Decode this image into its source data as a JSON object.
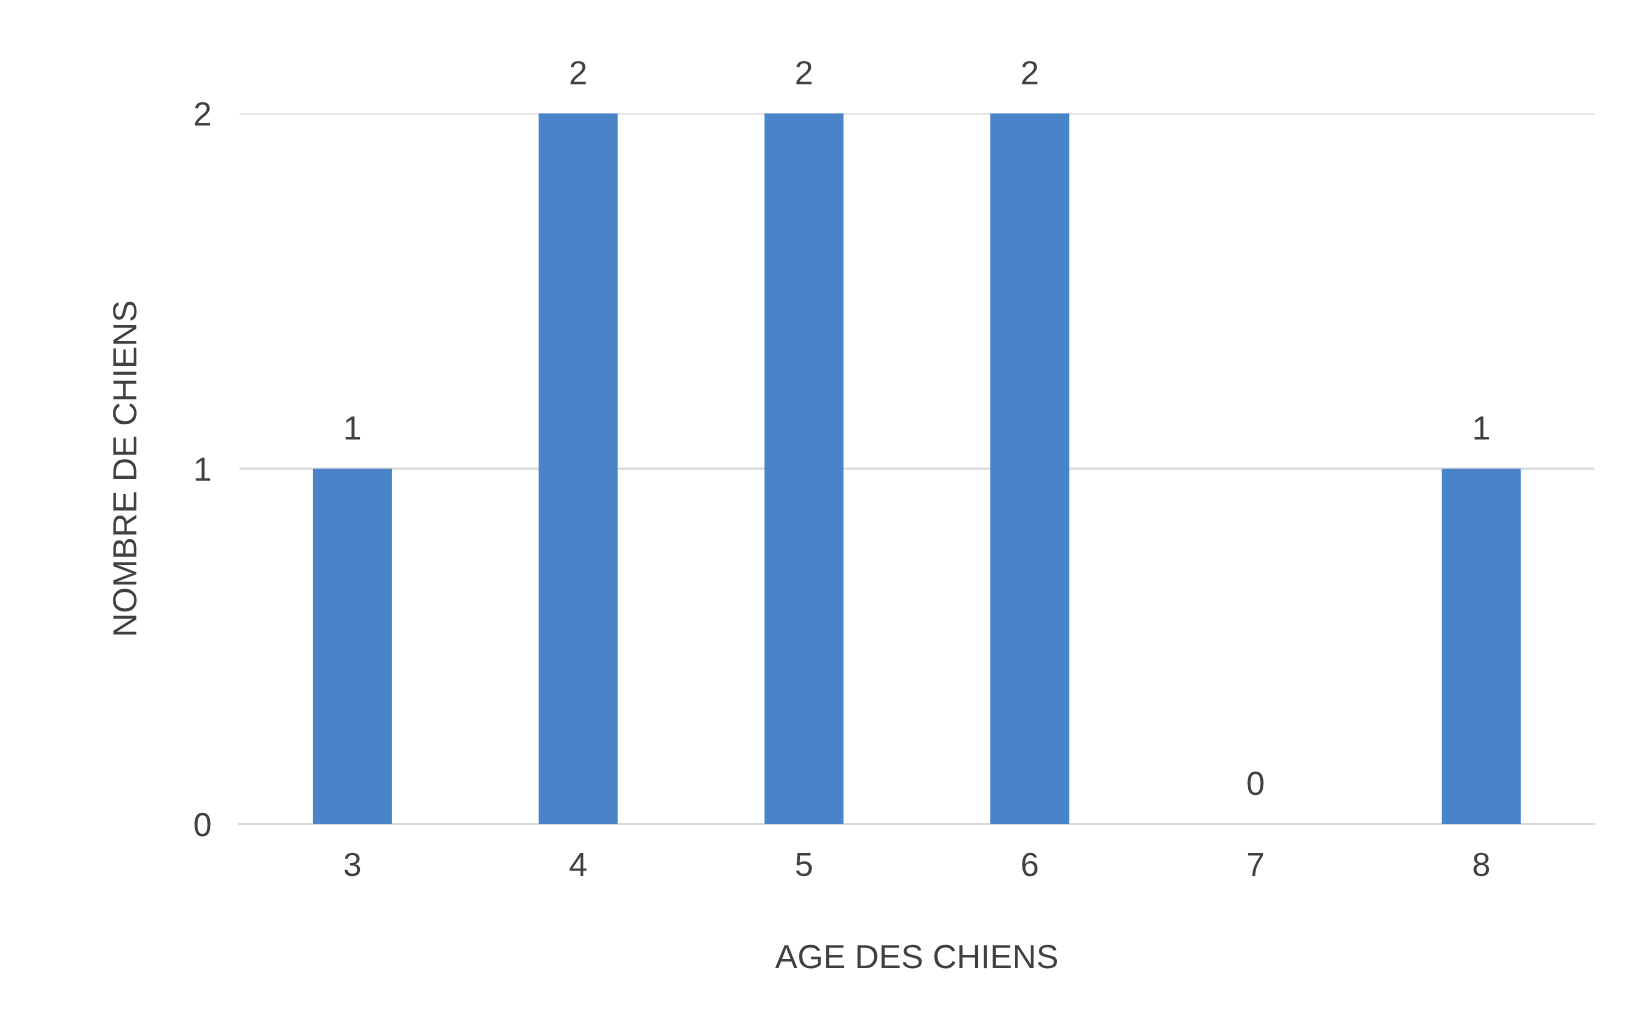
{
  "chart_data": {
    "type": "bar",
    "xlabel": "AGE DES CHIENS",
    "ylabel": "NOMBRE DE CHIENS",
    "categories": [
      "3",
      "4",
      "5",
      "6",
      "7",
      "8"
    ],
    "values": [
      1,
      2,
      2,
      2,
      0,
      1
    ],
    "color": "#4a84c8",
    "ylim": [
      0,
      2
    ],
    "yticks": [
      0,
      1,
      2
    ],
    "grid": "y",
    "data_labels": true
  }
}
